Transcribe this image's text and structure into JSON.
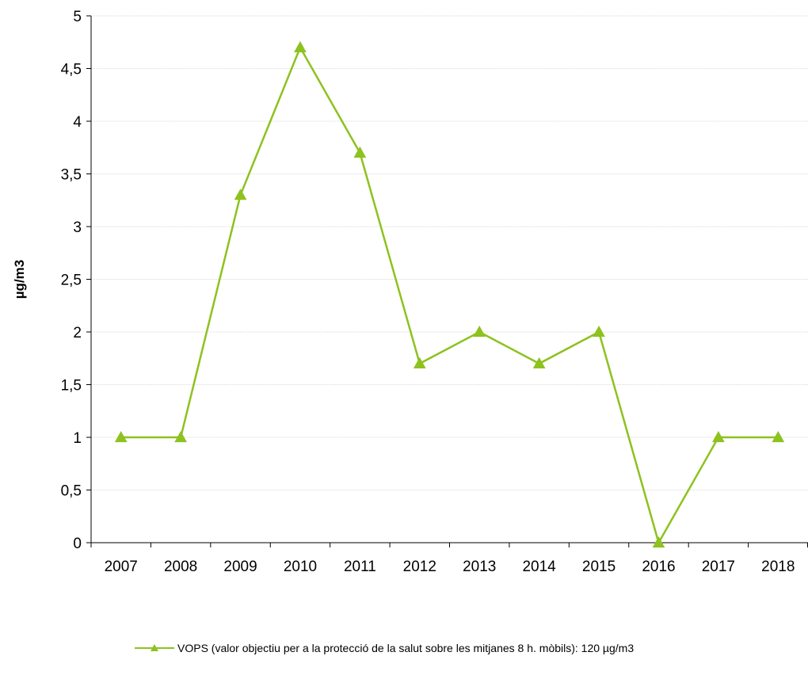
{
  "chart_data": {
    "type": "line",
    "title": "",
    "xlabel": "",
    "ylabel": "µg/m3",
    "categories": [
      "2007",
      "2008",
      "2009",
      "2010",
      "2011",
      "2012",
      "2013",
      "2014",
      "2015",
      "2016",
      "2017",
      "2018"
    ],
    "series": [
      {
        "name": "VOPS (valor objectiu per a la protecció de la salut sobre les mitjanes 8 h. mòbils): 120 µg/m3",
        "values": [
          1,
          1,
          3.3,
          4.7,
          3.7,
          1.7,
          2,
          1.7,
          2,
          0,
          1,
          1
        ],
        "color": "#8DC21F",
        "marker": "triangle"
      }
    ],
    "ylim": [
      0,
      5
    ],
    "yticks": [
      "0",
      "0,5",
      "1",
      "1,5",
      "2",
      "2,5",
      "3",
      "3,5",
      "4",
      "4,5",
      "5"
    ],
    "grid": true,
    "legend_position": "bottom"
  }
}
